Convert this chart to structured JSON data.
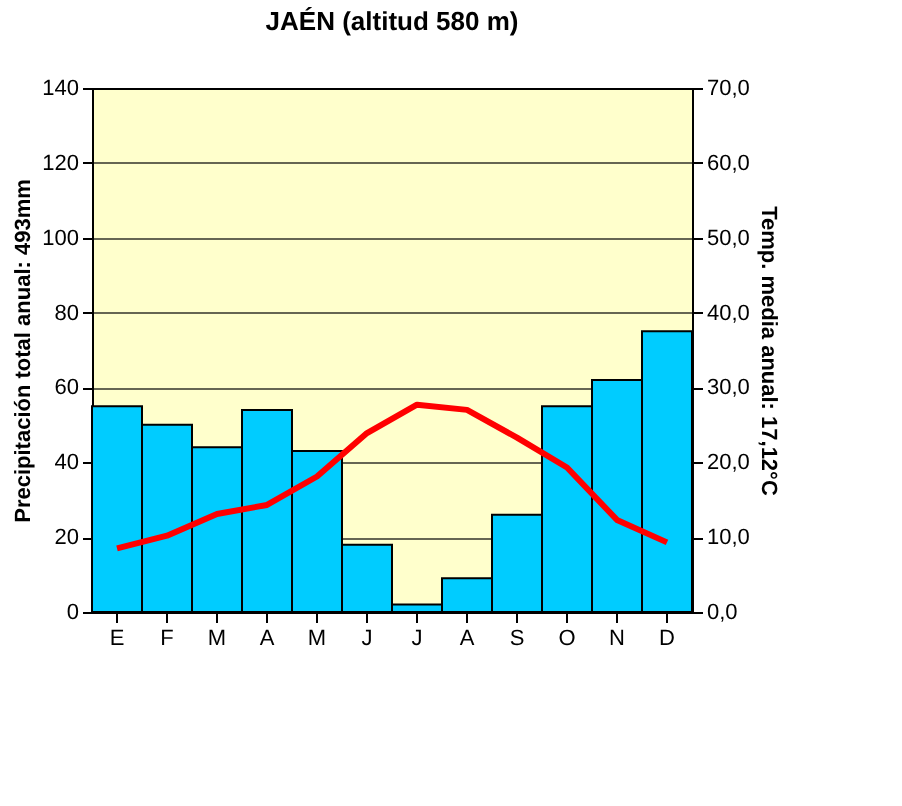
{
  "chart_data": {
    "type": "bar",
    "title": "JAÉN (altitud 580 m)",
    "ylabel": "Precipitación total anual: 493mm",
    "y2label": "Temp. media anual: 17,12°C",
    "categories": [
      "E",
      "F",
      "M",
      "A",
      "M",
      "J",
      "J",
      "A",
      "S",
      "O",
      "N",
      "D"
    ],
    "series": [
      {
        "color": "#00ccff",
        "values": [
          55,
          50,
          44,
          54,
          43,
          18,
          2,
          9,
          26,
          55,
          62,
          75
        ]
      },
      {
        "type": "line",
        "axis": "y2",
        "color": "#ff0000",
        "values": [
          8.5,
          10.2,
          13.1,
          14.3,
          18.1,
          23.9,
          27.7,
          27.0,
          23.3,
          19.3,
          12.3,
          9.3
        ]
      }
    ],
    "ylim": [
      0,
      140
    ],
    "yticks": [
      0,
      20,
      40,
      60,
      80,
      100,
      120,
      140
    ],
    "y2lim": [
      0,
      70
    ],
    "y2ticks": [
      {
        "value": 0,
        "label": "0,0"
      },
      {
        "value": 10,
        "label": "10,0"
      },
      {
        "value": 20,
        "label": "20,0"
      },
      {
        "value": 30,
        "label": "30,0"
      },
      {
        "value": 40,
        "label": "40,0"
      },
      {
        "value": 50,
        "label": "50,0"
      },
      {
        "value": 60,
        "label": "60,0"
      },
      {
        "value": 70,
        "label": "70,0"
      }
    ],
    "grid": "y",
    "marker": "none",
    "line_style": "solid"
  }
}
